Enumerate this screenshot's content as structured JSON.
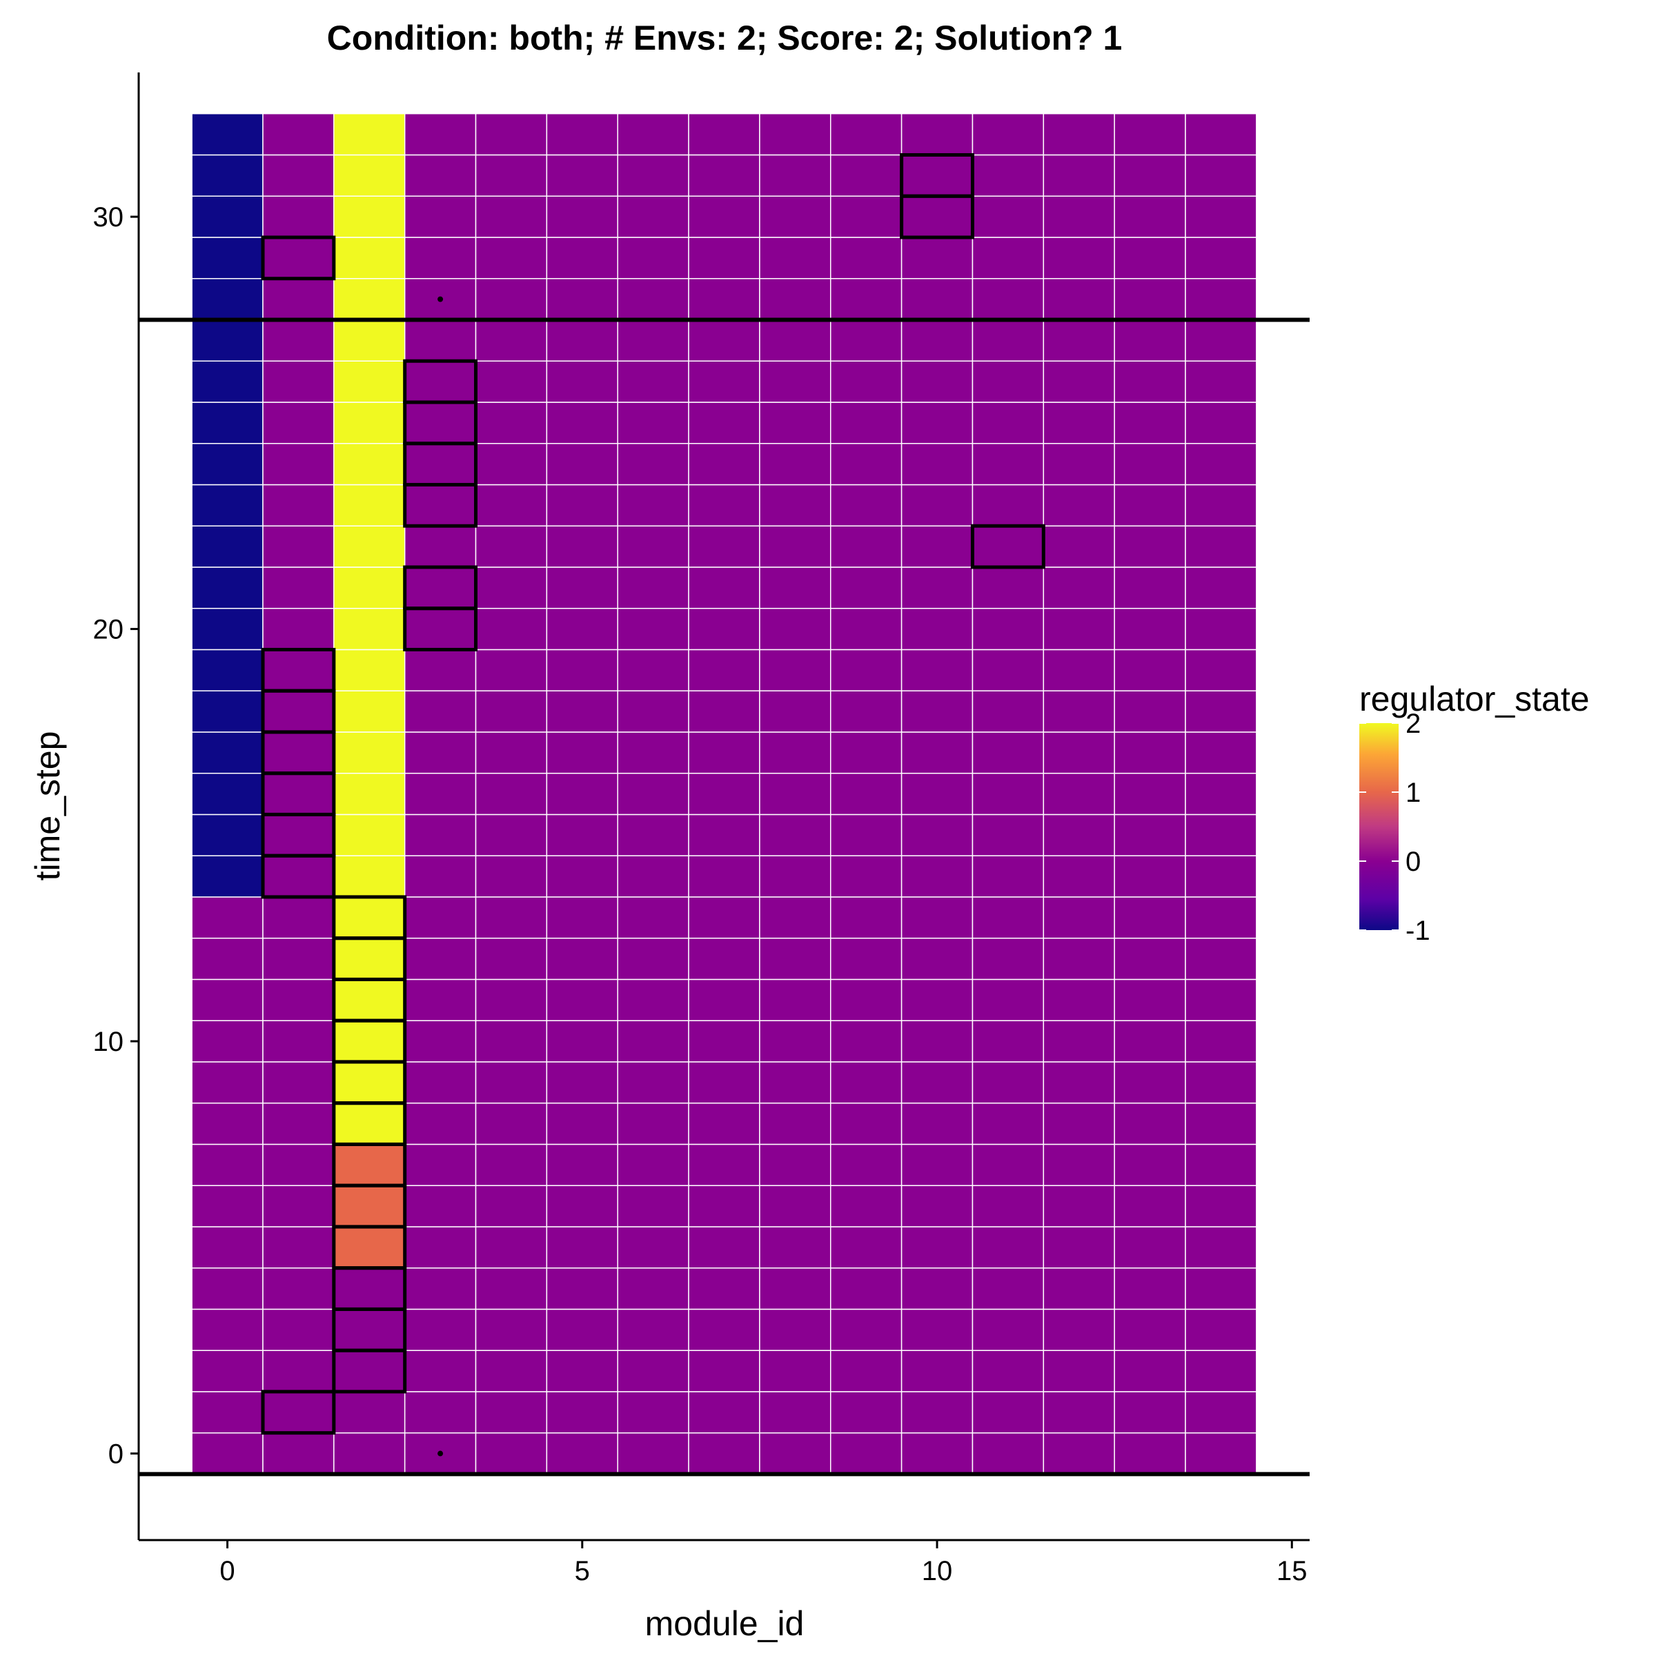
{
  "chart_data": {
    "type": "heatmap",
    "title": "Condition: both; # Envs: 2; Score: 2; Solution? 1",
    "xlabel": "module_id",
    "ylabel": "time_step",
    "xlim": [
      -1.25,
      15.25
    ],
    "ylim": [
      -2.1,
      33.5
    ],
    "x_ticks": [
      0,
      5,
      10,
      15
    ],
    "y_ticks": [
      0,
      10,
      20,
      30
    ],
    "x_tick_labels": [
      "0",
      "5",
      "10",
      "15"
    ],
    "y_tick_labels": [
      "0",
      "10",
      "20",
      "30"
    ],
    "modules": [
      0,
      1,
      2,
      3,
      4,
      5,
      6,
      7,
      8,
      9,
      10,
      11,
      12,
      13,
      14
    ],
    "time_steps": [
      0,
      1,
      2,
      3,
      4,
      5,
      6,
      7,
      8,
      9,
      10,
      11,
      12,
      13,
      14,
      15,
      16,
      17,
      18,
      19,
      20,
      21,
      22,
      23,
      24,
      25,
      26,
      27,
      28,
      29,
      30,
      31,
      32
    ],
    "regulator_state_default": 0,
    "regulator_state_cells": [
      {
        "module": 0,
        "from": 14,
        "to": 32,
        "value": -1
      },
      {
        "module": 2,
        "from": 5,
        "to": 7,
        "value": 1
      },
      {
        "module": 2,
        "from": 8,
        "to": 32,
        "value": 2
      }
    ],
    "outlined_cells": [
      {
        "module": 1,
        "time": 1
      },
      {
        "module": 1,
        "time": 14
      },
      {
        "module": 1,
        "time": 15
      },
      {
        "module": 1,
        "time": 16
      },
      {
        "module": 1,
        "time": 17
      },
      {
        "module": 1,
        "time": 18
      },
      {
        "module": 1,
        "time": 19
      },
      {
        "module": 1,
        "time": 29
      },
      {
        "module": 2,
        "time": 2
      },
      {
        "module": 2,
        "time": 3
      },
      {
        "module": 2,
        "time": 4
      },
      {
        "module": 2,
        "time": 5
      },
      {
        "module": 2,
        "time": 6
      },
      {
        "module": 2,
        "time": 7
      },
      {
        "module": 2,
        "time": 8
      },
      {
        "module": 2,
        "time": 9
      },
      {
        "module": 2,
        "time": 10
      },
      {
        "module": 2,
        "time": 11
      },
      {
        "module": 2,
        "time": 12
      },
      {
        "module": 2,
        "time": 13
      },
      {
        "module": 3,
        "time": 20
      },
      {
        "module": 3,
        "time": 21
      },
      {
        "module": 3,
        "time": 23
      },
      {
        "module": 3,
        "time": 24
      },
      {
        "module": 3,
        "time": 25
      },
      {
        "module": 3,
        "time": 26
      },
      {
        "module": 10,
        "time": 30
      },
      {
        "module": 10,
        "time": 31
      },
      {
        "module": 11,
        "time": 22
      }
    ],
    "horizontal_lines": [
      -0.5,
      27.5
    ],
    "points": [
      {
        "x": 3,
        "y": 0
      },
      {
        "x": 3,
        "y": 28
      }
    ],
    "legend": {
      "title": "regulator_state",
      "ticks": [
        2,
        1,
        0,
        -1
      ],
      "tick_labels": [
        "2",
        "1",
        "0",
        "-1"
      ],
      "range": [
        -1,
        2
      ],
      "placement": "right"
    },
    "grid": false,
    "colors": {
      "low": "#0d0887",
      "mid": "#8a0091",
      "midhigh": "#e7674a",
      "high": "#f0f921",
      "cell_border": "#ffffff",
      "outline": "#000000"
    }
  }
}
